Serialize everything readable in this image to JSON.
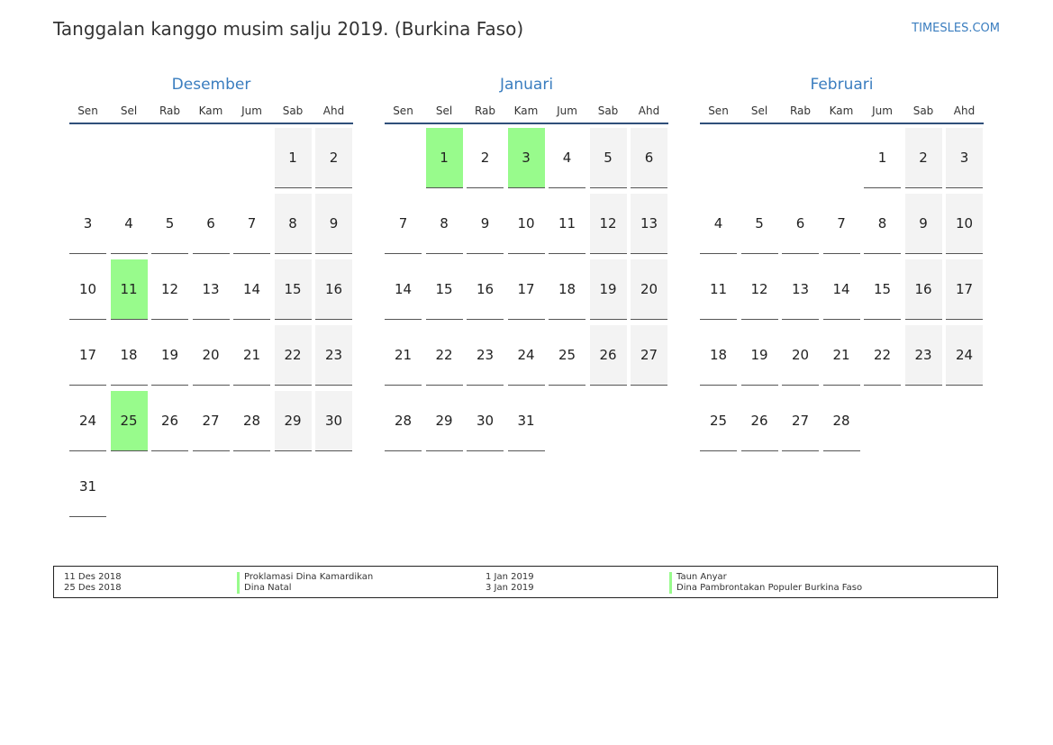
{
  "header": {
    "title": "Tanggalan kanggo musim salju 2019. (Burkina Faso)",
    "site": "TIMESLES.COM"
  },
  "colors": {
    "accent": "#3a7dbf",
    "holiday": "#98fb8c",
    "weekend": "#f3f3f3"
  },
  "weekdays": [
    "Sen",
    "Sel",
    "Rab",
    "Kam",
    "Jum",
    "Sab",
    "Ahd"
  ],
  "months": [
    {
      "name": "Desember",
      "start_offset": 5,
      "days": 31,
      "holidays": [
        11,
        25
      ]
    },
    {
      "name": "Januari",
      "start_offset": 1,
      "days": 31,
      "holidays": [
        1,
        3
      ]
    },
    {
      "name": "Februari",
      "start_offset": 4,
      "days": 28,
      "holidays": []
    }
  ],
  "legend": [
    [
      {
        "date": "11 Des 2018",
        "name": "Proklamasi Dina Kamardikan"
      },
      {
        "date": "25 Des 2018",
        "name": "Dina Natal"
      }
    ],
    [
      {
        "date": "1 Jan 2019",
        "name": "Taun Anyar"
      },
      {
        "date": "3 Jan 2019",
        "name": "Dina Pambrontakan Populer Burkina Faso"
      }
    ]
  ]
}
